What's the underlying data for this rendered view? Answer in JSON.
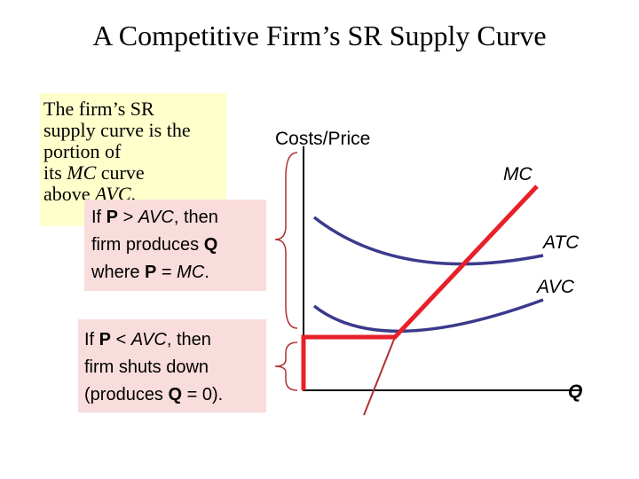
{
  "title": "A Competitive Firm’s SR Supply Curve",
  "note_box": {
    "lines": [
      [
        {
          "t": "The firm’s SR"
        }
      ],
      [
        {
          "t": "supply curve is the"
        }
      ],
      [
        {
          "t": "portion of"
        }
      ],
      [
        {
          "t": "its "
        },
        {
          "t": "MC",
          "i": true
        },
        {
          "t": " curve"
        }
      ],
      [
        {
          "t": "above "
        },
        {
          "t": "AVC",
          "i": true
        },
        {
          "t": "."
        }
      ]
    ]
  },
  "produce_box": {
    "lines": [
      [
        {
          "t": "If "
        },
        {
          "t": "P",
          "b": true
        },
        {
          "t": " > "
        },
        {
          "t": "AVC",
          "i": true
        },
        {
          "t": ", then"
        }
      ],
      [
        {
          "t": "firm produces "
        },
        {
          "t": "Q",
          "b": true
        }
      ],
      [
        {
          "t": "where "
        },
        {
          "t": "P",
          "b": true
        },
        {
          "t": " = "
        },
        {
          "t": "MC",
          "i": true
        },
        {
          "t": "."
        }
      ]
    ]
  },
  "shutdown_box": {
    "lines": [
      [
        {
          "t": "If "
        },
        {
          "t": "P",
          "b": true
        },
        {
          "t": " < "
        },
        {
          "t": "AVC",
          "i": true
        },
        {
          "t": ", then"
        }
      ],
      [
        {
          "t": "firm shuts down"
        }
      ],
      [
        {
          "t": "(produces "
        },
        {
          "t": "Q",
          "b": true
        },
        {
          "t": " = 0)."
        }
      ]
    ]
  },
  "graph": {
    "y_label": "Costs/Price",
    "mc_label": "MC",
    "atc_label": "ATC",
    "avc_label": "AVC",
    "x_label": "Q"
  }
}
